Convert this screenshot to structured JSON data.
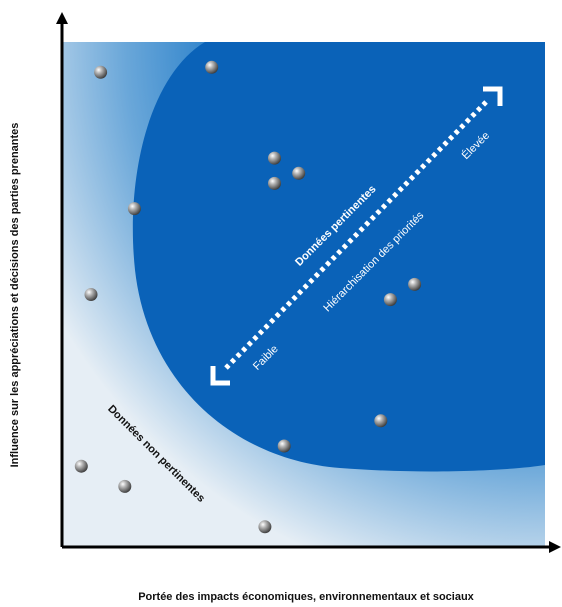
{
  "chart_data": {
    "type": "scatter",
    "xlabel": "Portée des impacts économiques, environnementaux et sociaux",
    "ylabel": "Influence sur les appréciations et décisions des parties prenantes",
    "xlim": [
      0,
      100
    ],
    "ylim": [
      0,
      100
    ],
    "grid": false,
    "zones": {
      "relevant": "Données pertinentes",
      "not_relevant": "Données non pertinentes"
    },
    "prioritization": {
      "label": "Hiérarchisation des priorités",
      "low": "Faible",
      "high": "Élevée"
    },
    "points": [
      {
        "x": 8,
        "y": 94
      },
      {
        "x": 31,
        "y": 95
      },
      {
        "x": 44,
        "y": 77
      },
      {
        "x": 49,
        "y": 74
      },
      {
        "x": 44,
        "y": 72
      },
      {
        "x": 15,
        "y": 67
      },
      {
        "x": 6,
        "y": 50
      },
      {
        "x": 68,
        "y": 49
      },
      {
        "x": 73,
        "y": 52
      },
      {
        "x": 66,
        "y": 25
      },
      {
        "x": 46,
        "y": 20
      },
      {
        "x": 4,
        "y": 16
      },
      {
        "x": 13,
        "y": 12
      },
      {
        "x": 42,
        "y": 4
      }
    ]
  }
}
